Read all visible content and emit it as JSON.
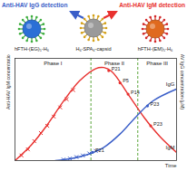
{
  "header": {
    "left": {
      "title": "Anti-HAV IgG detection",
      "color": "#3a5ec8",
      "particle": "hFTH-(EG)₅-H₆"
    },
    "center": {
      "particle": "H₆-SPA₆-capsid"
    },
    "right": {
      "title": "Anti-HAV IgM detection",
      "color": "#e8312f",
      "particle": "hFTH-(EM)₅-H₆"
    }
  },
  "chart_data": {
    "type": "line",
    "x_label": "Time",
    "y_label": "Anti-HAV IgM concentration (μM)",
    "y2_label": "Anti-HAV IgG concentration (μM)",
    "xlim": [
      0,
      10
    ],
    "ylim": [
      0,
      10
    ],
    "y2lim": [
      0,
      10
    ],
    "xticks": [],
    "yticks": [],
    "y2ticks": [],
    "tick_labels": false,
    "series": [
      {
        "name": "IgM",
        "type": "line",
        "color": "#e8312f",
        "x": [
          0,
          1,
          2,
          3,
          4,
          5,
          5.5,
          6,
          7,
          8,
          9,
          10
        ],
        "values": [
          0,
          1.5,
          3.5,
          5.8,
          7.8,
          9,
          9.1,
          8.7,
          6.5,
          4.2,
          2.3,
          0.8
        ]
      },
      {
        "name": "IgG",
        "type": "line",
        "color": "#3a5ec8",
        "axis": "y2",
        "x": [
          2.5,
          3.5,
          4.5,
          5.5,
          6.5,
          7.5,
          8.5,
          10
        ],
        "values": [
          0,
          0.2,
          0.6,
          1.3,
          2.6,
          4.3,
          5.8,
          7.0
        ]
      },
      {
        "name": "IgM",
        "type": "scatter",
        "marker": "x",
        "color": "#e8312f",
        "x": [
          0.4,
          0.8,
          1.2,
          1.6,
          2.0,
          2.4,
          2.8,
          3.2,
          3.6
        ],
        "values": [
          0.5,
          1.1,
          1.9,
          2.7,
          3.4,
          4.3,
          5.2,
          6.0,
          6.9
        ]
      },
      {
        "name": "IgG",
        "type": "scatter",
        "marker": "x",
        "color": "#3a5ec8",
        "axis": "y2",
        "x": [
          3.0,
          3.4,
          3.8,
          4.2,
          4.6,
          5.0
        ],
        "values": [
          0.1,
          0.2,
          0.35,
          0.5,
          0.7,
          0.95
        ]
      }
    ],
    "samples": [
      {
        "label": "P21",
        "x": 5.8,
        "y": 8.8,
        "color": "#e8312f"
      },
      {
        "label": "P5",
        "x": 6.5,
        "y": 7.6,
        "color": "#e8312f"
      },
      {
        "label": "P14",
        "x": 7.0,
        "y": 6.5,
        "color": "#e8312f"
      },
      {
        "label": "P21",
        "x": 4.8,
        "y": 0.8,
        "color": "#3a5ec8",
        "axis": "y2"
      },
      {
        "label": "P23",
        "x": 8.2,
        "y": 5.35,
        "color": "#3a5ec8",
        "axis": "y2"
      },
      {
        "label": "P23",
        "x": 8.4,
        "y": 3.4,
        "color": "#e8312f"
      }
    ],
    "phases": [
      {
        "label": "Phase I",
        "start": 0,
        "end": 4.7
      },
      {
        "label": "Phase II",
        "start": 4.7,
        "end": 7.6
      },
      {
        "label": "Phase III",
        "start": 7.6,
        "end": 10
      }
    ]
  }
}
